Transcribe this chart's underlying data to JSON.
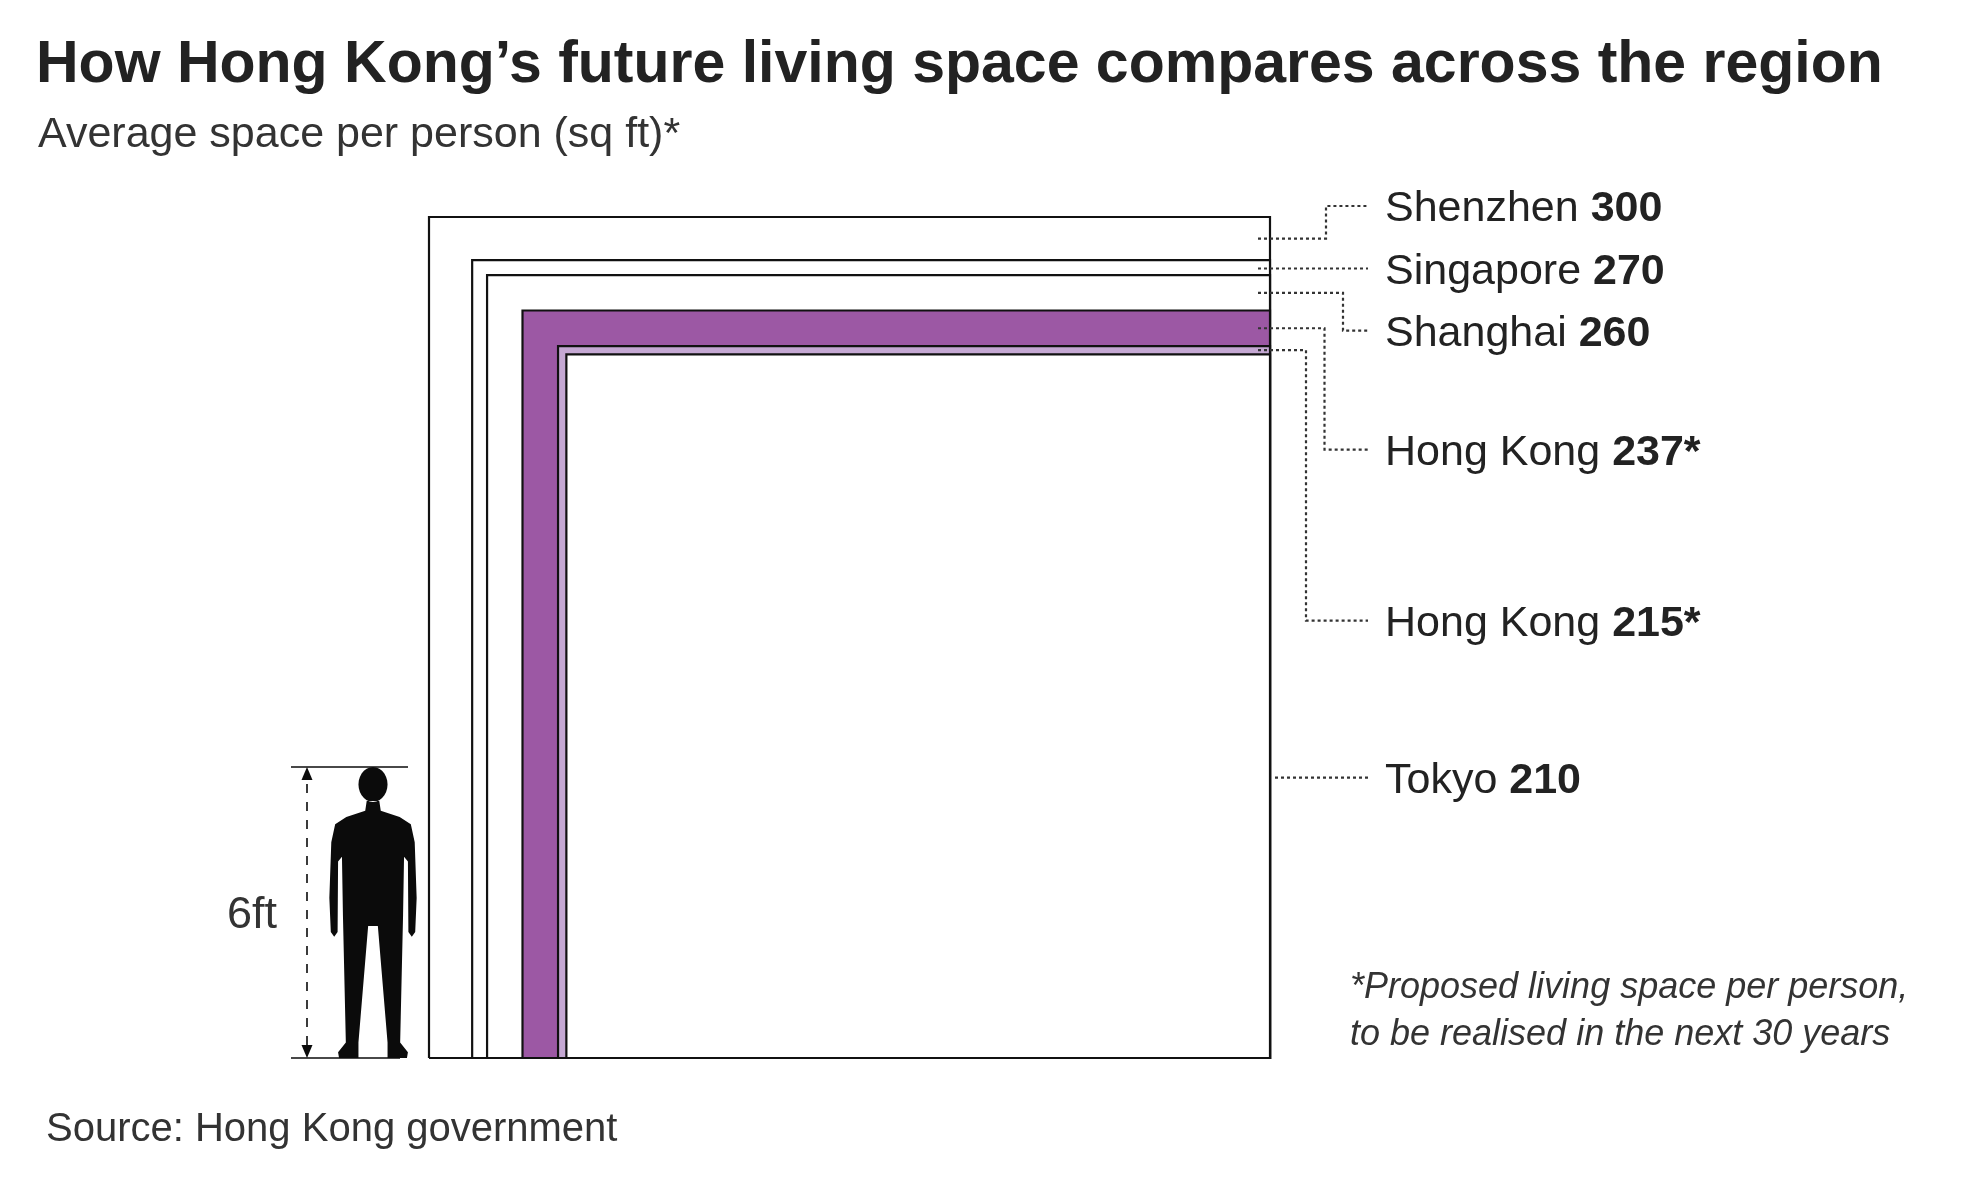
{
  "chart_data": {
    "type": "other",
    "title": "How Hong Kong’s future living space compares across the region",
    "subtitle": "Average space per person (sq ft)*",
    "categories": [
      "Shenzhen",
      "Singapore",
      "Shanghai",
      "Hong Kong",
      "Hong Kong",
      "Tokyo"
    ],
    "values": [
      300,
      270,
      260,
      237,
      215,
      210
    ],
    "value_labels": [
      "300",
      "270",
      "260",
      "237*",
      "215*",
      "210"
    ],
    "colors": [
      "#ffffff",
      "#ffffff",
      "#ffffff",
      "#9c58a4",
      "#c5a8d3",
      "#ffffff"
    ],
    "annotations": [
      "*Proposed living space per person,\nto be realised in the next 30 years",
      "Source: Hong Kong government",
      "6ft"
    ]
  }
}
